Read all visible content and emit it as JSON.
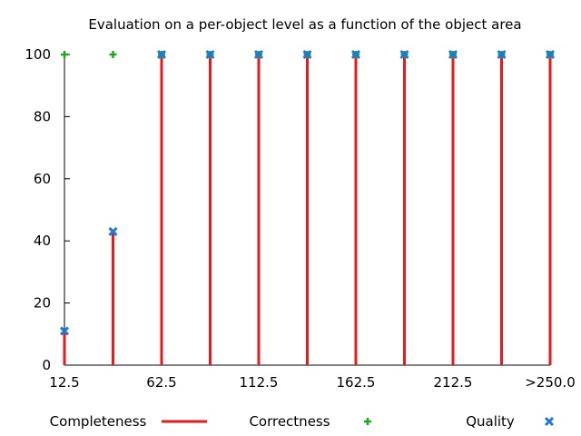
{
  "chart_data": {
    "type": "bar",
    "title": "Evaluation on a per-object level as a function of the object area",
    "xlabel": "",
    "ylabel": "",
    "ylim": [
      0,
      100
    ],
    "yticks": [
      0,
      20,
      40,
      60,
      80,
      100
    ],
    "xlim": [
      12.5,
      262.5
    ],
    "x": [
      12.5,
      37.5,
      62.5,
      87.5,
      112.5,
      137.5,
      162.5,
      187.5,
      212.5,
      237.5,
      262.5
    ],
    "xtick_values": [
      12.5,
      62.5,
      112.5,
      162.5,
      212.5,
      262.5
    ],
    "xtick_labels": [
      "12.5",
      "62.5",
      "112.5",
      "162.5",
      "212.5",
      ">250.0"
    ],
    "series": [
      {
        "name": "Completeness",
        "style": "impulse",
        "color": "#e41a1c",
        "values": [
          11,
          43,
          100,
          100,
          100,
          100,
          100,
          100,
          100,
          100,
          100
        ]
      },
      {
        "name": "Correctness",
        "style": "plus",
        "color": "#1ca91c",
        "values": [
          100,
          100,
          100,
          100,
          100,
          100,
          100,
          100,
          100,
          100,
          100
        ]
      },
      {
        "name": "Quality",
        "style": "cross",
        "color": "#1f78d8",
        "values": [
          11,
          43,
          100,
          100,
          100,
          100,
          100,
          100,
          100,
          100,
          100
        ]
      }
    ],
    "legend_position": "bottom",
    "grid": false
  }
}
